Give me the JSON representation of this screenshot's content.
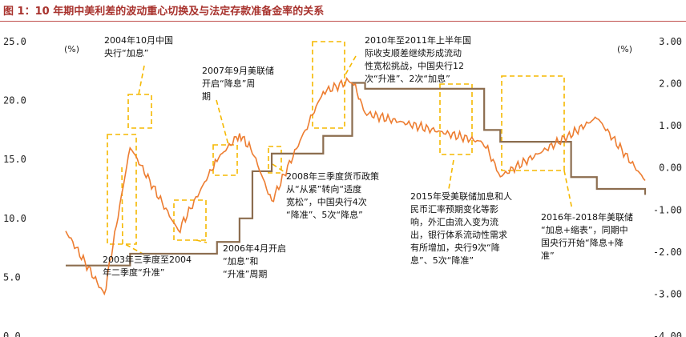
{
  "chart_data": {
    "type": "line",
    "title": "图 1：10 年期中美利差的波动重心切换及与法定存款准备金率的关系",
    "left_axis": {
      "unit": "(%)",
      "ylim": [
        0,
        25
      ],
      "ticks": [
        "25.0",
        "20.0",
        "15.0",
        "10.0",
        "5.0",
        "0.0"
      ]
    },
    "right_axis": {
      "unit": "(%)",
      "ylim": [
        -4,
        3
      ],
      "ticks": [
        "3.00",
        "2.00",
        "1.00",
        "0.00",
        "-1.00",
        "-2.00",
        "-3.00",
        "-4.00"
      ]
    },
    "colors": {
      "spread": "#ed7d31",
      "rrr": "#8c6d4f",
      "box": "#f5b800",
      "title": "#a8322d"
    },
    "x": [
      2002.5,
      2003.7,
      2004.5,
      2006.0,
      2007.2,
      2007.9,
      2008.3,
      2008.9,
      2010.0,
      2010.5,
      2011.4,
      2011.8,
      2015.5,
      2016.0,
      2018.2,
      2019.0,
      2020.5
    ],
    "series": [
      {
        "axis": "left",
        "values": [
          6.0,
          6.0,
          7.0,
          7.0,
          8.0,
          10.0,
          14.0,
          15.5,
          15.5,
          17.0,
          21.5,
          21.0,
          17.5,
          16.5,
          13.5,
          12.5,
          12.0
        ]
      },
      {
        "axis": "right",
        "values": [
          -1.5,
          -3.0,
          0.5,
          -1.5,
          0.2,
          0.8,
          0.4,
          -0.8,
          1.0,
          1.8,
          2.1,
          1.3,
          0.6,
          -0.2,
          0.8,
          1.2,
          -0.3
        ]
      }
    ],
    "annotations": [
      {
        "lines": [
          "2004年10月中国",
          "央行“加息”"
        ]
      },
      {
        "lines": [
          "2007年9月美联储",
          "开启“降息”周",
          "期"
        ]
      },
      {
        "lines": [
          "2010年至2011年上半年国",
          "际收支顺差继续形成流动",
          "性宽松挑战，中国央行12",
          "次“升准”、2次“加息”"
        ]
      },
      {
        "lines": [
          "2008年三季度货币政策",
          "从“从紧”转向“适度",
          "宽松”，中国央行4次",
          "“降准”、5次“降息”"
        ]
      },
      {
        "lines": [
          "2015年受美联储加息和人",
          "民币汇率预期变化等影",
          "响，外汇由流入变为流",
          "出，银行体系流动性需求",
          "有所增加，央行9次“降",
          "息”、5次“降准”"
        ]
      },
      {
        "lines": [
          "2016年-2018年美联储",
          "“加息+缩表”，同期中",
          "国央行开始“降息+降",
          "准”"
        ]
      },
      {
        "lines": [
          "2006年4月开启",
          "“加息”和",
          "“升准”周期"
        ]
      },
      {
        "lines": [
          "2003年三季度至2004",
          "年二季度“升准”"
        ]
      }
    ]
  }
}
